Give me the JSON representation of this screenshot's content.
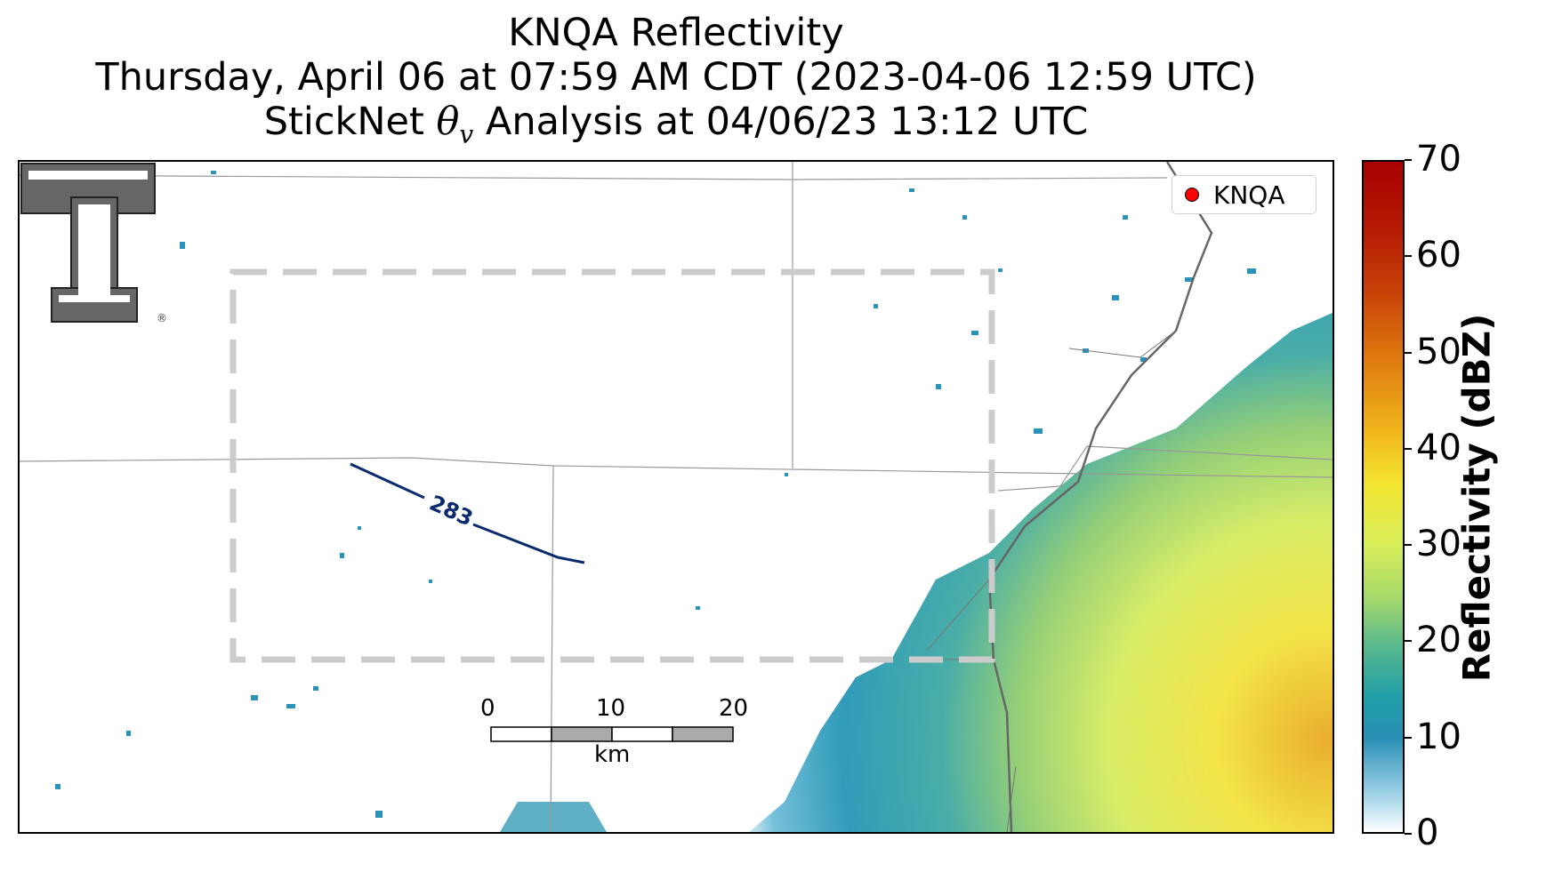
{
  "title": {
    "line1": "KNQA Reflectivity",
    "line2": "Thursday, April 06 at 07:59 AM CDT (2023-04-06 12:59 UTC)",
    "line3_prefix": "StickNet ",
    "line3_symbol": "θ",
    "line3_subscript": "v",
    "line3_suffix": " Analysis at 04/06/23 13:12 UTC"
  },
  "legend": {
    "label": "KNQA",
    "marker_color": "#ff0000"
  },
  "contour": {
    "label": "283",
    "color": "#0a2a6e"
  },
  "scale_bar": {
    "labels": [
      "0",
      "10",
      "20"
    ],
    "unit": "km"
  },
  "colorbar": {
    "title": "Reflectivity (dBZ)",
    "ticks": [
      "0",
      "10",
      "20",
      "30",
      "40",
      "50",
      "60",
      "70"
    ],
    "range": [
      0,
      70
    ]
  },
  "logo": {
    "text": "T",
    "mark": "®"
  },
  "colors": {
    "analysis_box": "#cccccc",
    "county_lines": "#999999",
    "state_line": "#666666"
  }
}
